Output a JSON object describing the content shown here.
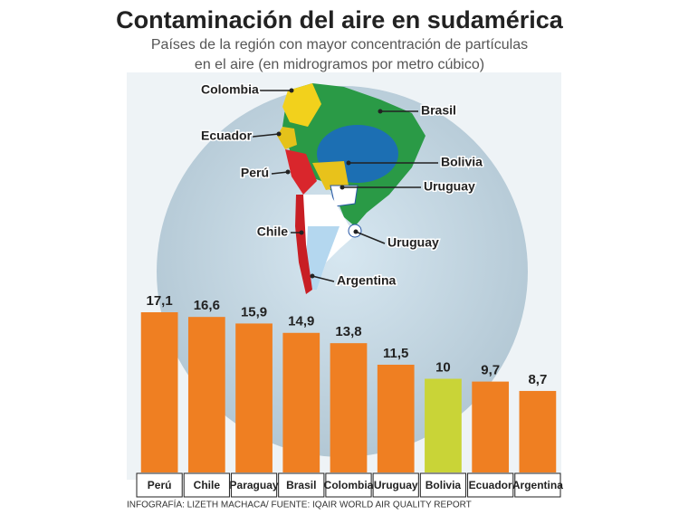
{
  "chart_data": {
    "type": "bar",
    "title": "Contaminación del aire en sudamérica",
    "subtitle": [
      "Países de la región con mayor concentración de partículas",
      "en el aire (en midrogramos por metro cúbico)"
    ],
    "categories": [
      "Perú",
      "Chile",
      "Paraguay",
      "Brasil",
      "Colombia",
      "Uruguay",
      "Bolivia",
      "Ecuador",
      "Argentina"
    ],
    "values": [
      17.1,
      16.6,
      15.9,
      14.9,
      13.8,
      11.5,
      10,
      9.7,
      8.7
    ],
    "value_labels": [
      "17,1",
      "16,6",
      "15,9",
      "14,9",
      "13,8",
      "11,5",
      "10",
      "9,7",
      "8,7"
    ],
    "colors": [
      "#ef7f22",
      "#ef7f22",
      "#ef7f22",
      "#ef7f22",
      "#ef7f22",
      "#ef7f22",
      "#c9d437",
      "#ef7f22",
      "#ef7f22"
    ],
    "map_labels": [
      "Colombia",
      "Ecuador",
      "Brasil",
      "Perú",
      "Bolivia",
      "Uruguay",
      "Chile",
      "Uruguay",
      "Argentina"
    ],
    "source": "INFOGRAFÍA: LIZETH MACHACA/ FUENTE: IQAIR WORLD AIR QUALITY REPORT"
  }
}
